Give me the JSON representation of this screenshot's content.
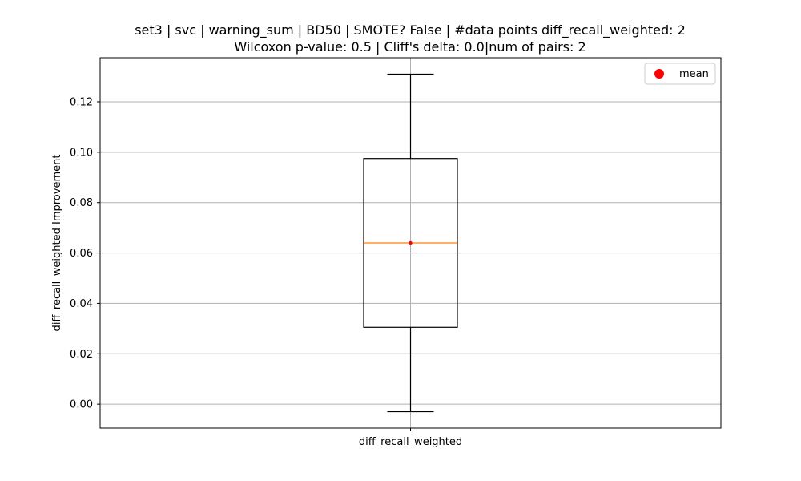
{
  "chart_data": {
    "type": "box",
    "title_lines": [
      "set3 | svc | warning_sum | BD50 | SMOTE? False | #data points diff_recall_weighted: 2",
      "Wilcoxon p-value: 0.5 | Cliff's delta: 0.0|num of pairs: 2"
    ],
    "xlabel": "",
    "ylabel": "diff_recall_weighted Improvement",
    "categories": [
      "diff_recall_weighted"
    ],
    "boxes": [
      {
        "name": "diff_recall_weighted",
        "whisker_low": -0.003,
        "q1": 0.0305,
        "median": 0.064,
        "q3": 0.0975,
        "whisker_high": 0.131,
        "mean": 0.064
      }
    ],
    "ylim": [
      -0.0095,
      0.1375
    ],
    "yticks": [
      0.0,
      0.02,
      0.04,
      0.06,
      0.08,
      0.1,
      0.12
    ],
    "ytick_labels": [
      "0.00",
      "0.02",
      "0.04",
      "0.06",
      "0.08",
      "0.10",
      "0.12"
    ],
    "grid": true,
    "legend": {
      "position": "top-right",
      "entries": [
        {
          "label": "mean",
          "marker": "circle",
          "color": "#ff0000"
        }
      ]
    },
    "colors": {
      "box": "#000000",
      "median": "#ff7f0e",
      "mean": "#ff0000",
      "grid": "#b0b0b0"
    }
  }
}
